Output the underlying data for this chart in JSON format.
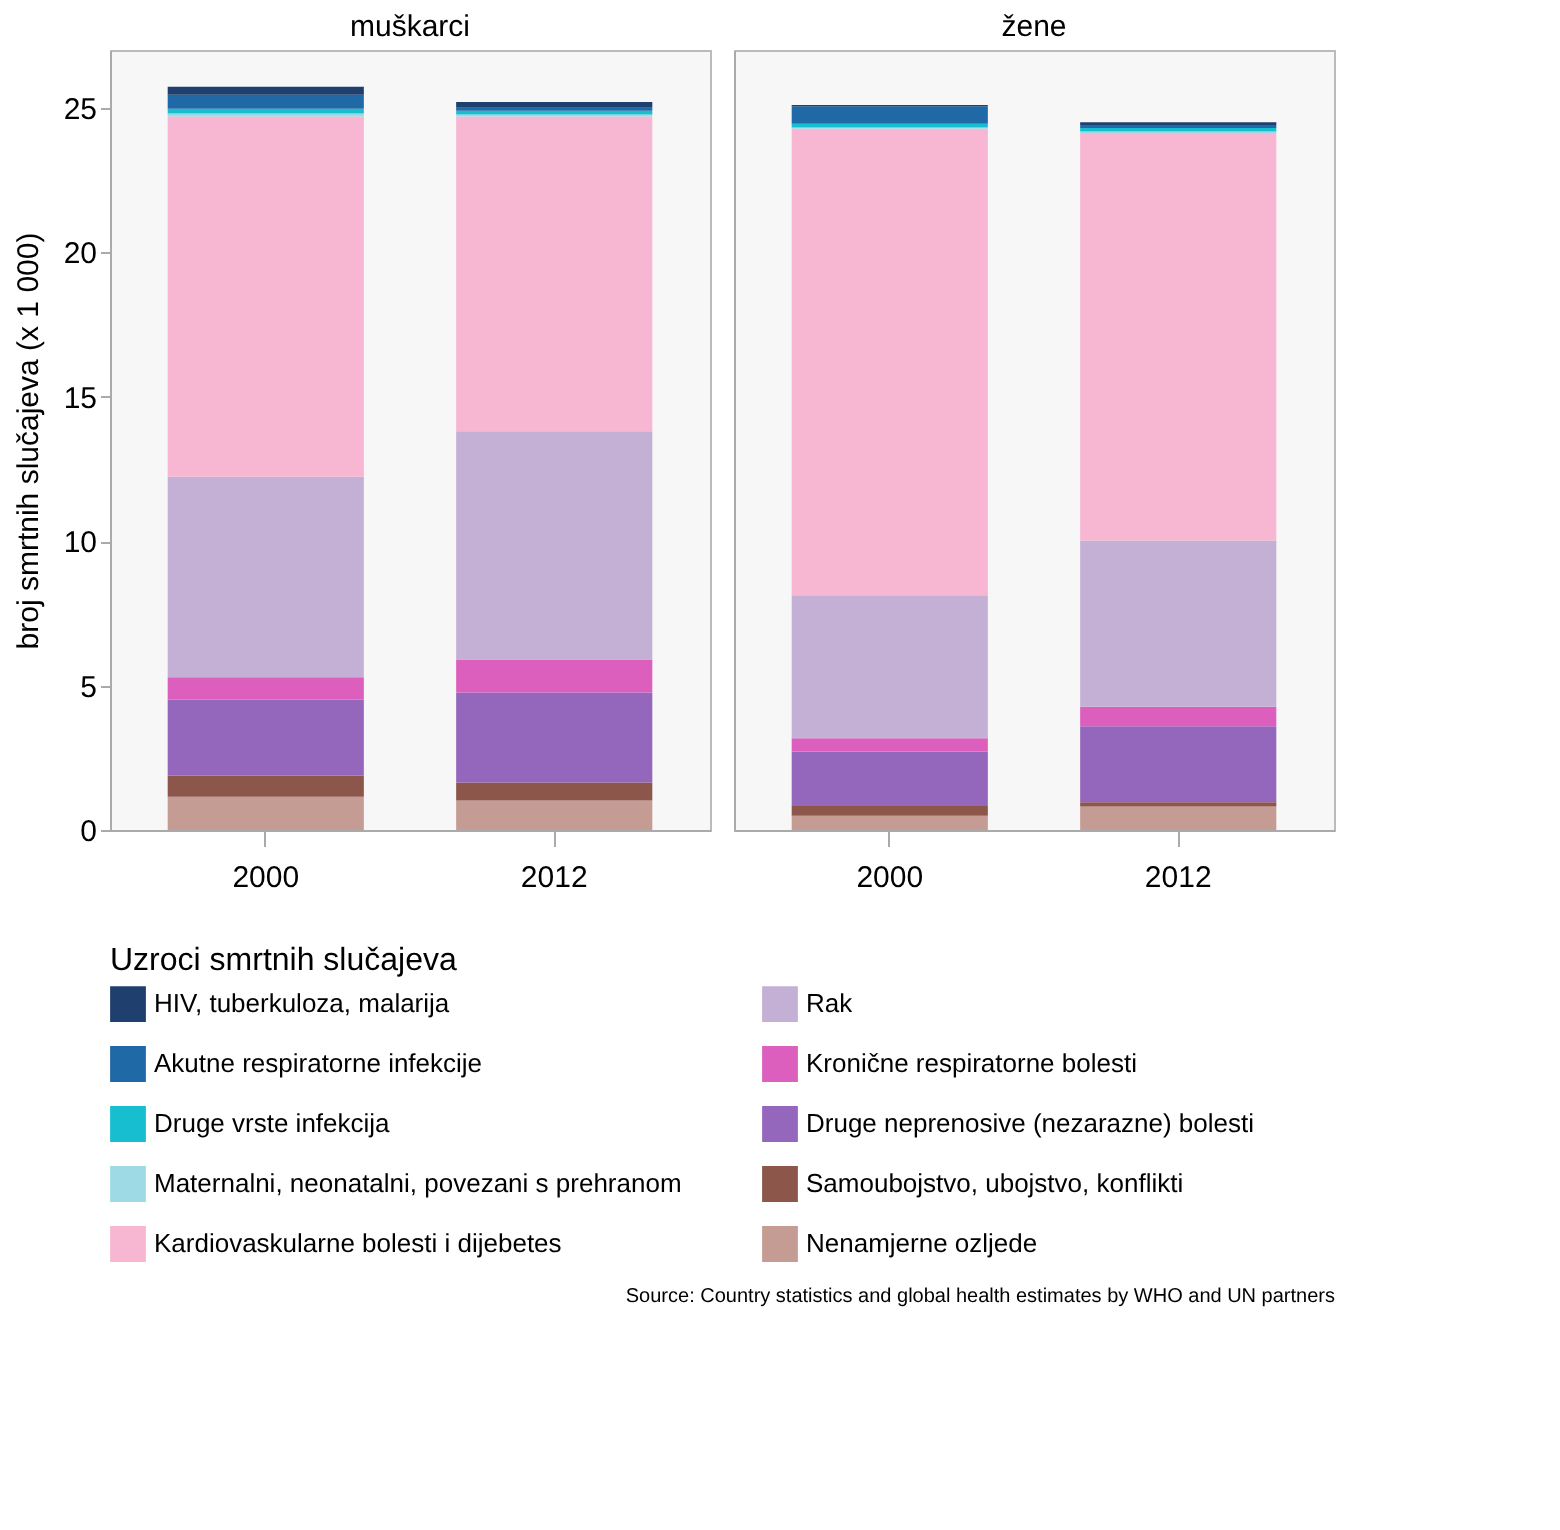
{
  "chart_data": [
    {
      "type": "bar",
      "stacked": true,
      "title": "muškarci",
      "ylabel": "broj smrtnih slučajeva (x 1 000)",
      "categories": [
        "2000",
        "2012"
      ],
      "ylim": [
        0,
        27
      ],
      "yticks": [
        0,
        5,
        10,
        15,
        20,
        25
      ],
      "grid": false,
      "legend": "bottom",
      "legend_title": "Uzroci smrtnih slučajeva",
      "series": [
        {
          "name": "Nenamjerne ozljede",
          "color": "#c49c94",
          "values": [
            1.15,
            1.02
          ]
        },
        {
          "name": "Samoubojstvo, ubojstvo, konflikti",
          "color": "#8c564b",
          "values": [
            0.74,
            0.62
          ]
        },
        {
          "name": "Druge neprenosive (nezarazne) bolesti",
          "color": "#9467bd",
          "values": [
            2.63,
            3.12
          ]
        },
        {
          "name": "Kronične respiratorne bolesti",
          "color": "#dc5fbd",
          "values": [
            0.77,
            1.14
          ]
        },
        {
          "name": "Rak",
          "color": "#c5b0d5",
          "values": [
            6.94,
            7.9
          ]
        },
        {
          "name": "Kardiovaskularne bolesti i dijebetes",
          "color": "#f7b6d2",
          "values": [
            12.47,
            10.9
          ]
        },
        {
          "name": "Maternalni, neonatalni, povezani s prehranom",
          "color": "#9edae5",
          "values": [
            0.1,
            0.07
          ]
        },
        {
          "name": "Druge vrste infekcija",
          "color": "#17becf",
          "values": [
            0.17,
            0.13
          ]
        },
        {
          "name": "Akutne respiratorne infekcije",
          "color": "#1f69a6",
          "values": [
            0.48,
            0.1
          ]
        },
        {
          "name": "HIV, tuberkuloza, malarija",
          "color": "#1f3f6e",
          "values": [
            0.28,
            0.2
          ]
        }
      ]
    },
    {
      "type": "bar",
      "stacked": true,
      "title": "žene",
      "categories": [
        "2000",
        "2012"
      ],
      "ylim": [
        0,
        27
      ],
      "yticks": [
        0,
        5,
        10,
        15,
        20,
        25
      ],
      "grid": false,
      "tick_labels": "x",
      "annotations": [
        "Source:  Country statistics and global health estimates by WHO and UN partners"
      ],
      "series": [
        {
          "name": "Nenamjerne ozljede",
          "color": "#c49c94",
          "values": [
            0.49,
            0.81
          ]
        },
        {
          "name": "Samoubojstvo, ubojstvo, konflikti",
          "color": "#8c564b",
          "values": [
            0.34,
            0.15
          ]
        },
        {
          "name": "Druge neprenosive (nezarazne) bolesti",
          "color": "#9467bd",
          "values": [
            1.89,
            2.63
          ]
        },
        {
          "name": "Kronične respiratorne bolesti",
          "color": "#dc5fbd",
          "values": [
            0.46,
            0.68
          ]
        },
        {
          "name": "Rak",
          "color": "#c5b0d5",
          "values": [
            4.95,
            5.75
          ]
        },
        {
          "name": "Kardiovaskularne bolesti i dijebetes",
          "color": "#f7b6d2",
          "values": [
            16.14,
            14.11
          ]
        },
        {
          "name": "Maternalni, neonatalni, povezani s prehranom",
          "color": "#9edae5",
          "values": [
            0.05,
            0.05
          ]
        },
        {
          "name": "Druge vrste infekcija",
          "color": "#17becf",
          "values": [
            0.13,
            0.12
          ]
        },
        {
          "name": "Akutne respiratorne infekcije",
          "color": "#1f69a6",
          "values": [
            0.6,
            0.1
          ]
        },
        {
          "name": "HIV, tuberkuloza, malarija",
          "color": "#1f3f6e",
          "values": [
            0.05,
            0.1
          ]
        }
      ]
    }
  ]
}
